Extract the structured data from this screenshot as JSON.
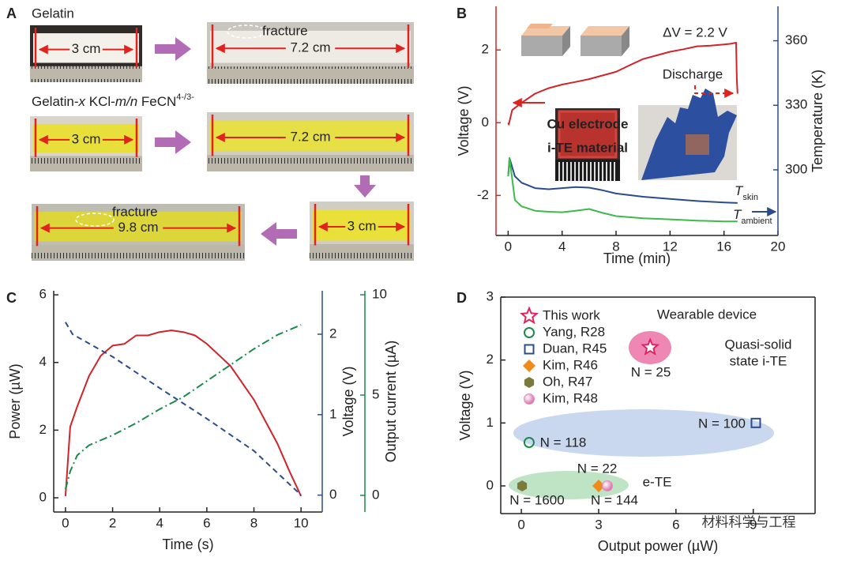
{
  "panel_labels": [
    "A",
    "B",
    "C",
    "D"
  ],
  "panel_a": {
    "title_1": "Gelatin",
    "title_2": {
      "parts": [
        "Gelatin-",
        "x",
        " KCl-",
        "m/n",
        " FeCN",
        "4-/3-"
      ]
    },
    "photos": [
      {
        "length": "3 cm"
      },
      {
        "length": "7.2 cm",
        "note": "fracture"
      },
      {
        "length": "3 cm"
      },
      {
        "length": "7.2 cm"
      },
      {
        "length": "3 cm"
      },
      {
        "length": "9.8 cm",
        "note": "fracture"
      }
    ]
  },
  "chart_data": [
    {
      "type": "line",
      "x_label": "Time (min)",
      "y_label": "Voltage (V)",
      "y2_label": "Temperature (K)",
      "xlim": [
        -0.9,
        20
      ],
      "xticks": [
        0,
        4,
        8,
        12,
        16,
        20
      ],
      "ylim": [
        -3.1,
        3.2
      ],
      "yticks": [
        -2,
        0,
        2
      ],
      "y2lim": [
        269.5,
        376
      ],
      "y2ticks": [
        300,
        330,
        360
      ],
      "annotations": [
        "ΔV = 2.2 V",
        "Discharge",
        "Cu electrode",
        "i-TE material"
      ],
      "series_labels": [
        {
          "text": "T",
          "sub": "skin"
        },
        {
          "text": "T",
          "sub": "ambient"
        }
      ],
      "series": [
        {
          "color": "#d2232a",
          "axis": "y",
          "dash": "solid",
          "x": [
            0,
            0.05,
            0.3,
            1,
            2,
            3,
            4,
            5,
            6,
            7,
            8,
            9,
            10,
            11,
            12,
            13,
            14,
            15,
            16,
            16.5,
            16.9,
            16.95,
            17
          ],
          "values": [
            0.0,
            -0.05,
            0.35,
            0.55,
            0.8,
            0.95,
            1.05,
            1.12,
            1.2,
            1.3,
            1.4,
            1.58,
            1.75,
            1.85,
            1.95,
            2.02,
            2.1,
            2.12,
            2.15,
            2.17,
            2.2,
            1.2,
            0.8
          ]
        },
        {
          "color": "#2b4c8c",
          "axis": "y2",
          "dash": "solid",
          "x": [
            0,
            0.1,
            0.5,
            1,
            2,
            3,
            4,
            5,
            6,
            7,
            8,
            10,
            12,
            14,
            16,
            17
          ],
          "values": [
            297,
            305.5,
            297,
            294,
            291.5,
            291,
            291.5,
            292,
            291.7,
            290.5,
            289,
            287.5,
            286.5,
            285.5,
            284.8,
            284.6
          ]
        },
        {
          "color": "#3dba4a",
          "axis": "y2",
          "dash": "solid",
          "x": [
            0,
            0.1,
            0.5,
            1,
            2,
            3,
            4,
            5,
            6,
            7,
            8,
            10,
            12,
            14,
            16,
            17
          ],
          "values": [
            297,
            305.5,
            286,
            283,
            281,
            280.5,
            280.3,
            281,
            281.8,
            280,
            278.5,
            277.5,
            277,
            276.4,
            276,
            276
          ]
        }
      ]
    },
    {
      "type": "line",
      "x_label": "Time (s)",
      "y_label": "Power (µW)",
      "y2_label": "Voltage (V)",
      "y3_label": "Output current (µA)",
      "xlim": [
        -0.5,
        10.9
      ],
      "xticks": [
        0,
        2,
        4,
        6,
        8,
        10
      ],
      "ylim": [
        -0.42,
        6.12
      ],
      "yticks": [
        0,
        2,
        4,
        6
      ],
      "y2lim": [
        -0.21,
        2.54
      ],
      "y2ticks": [
        0,
        1,
        2
      ],
      "y3lim": [
        -0.83,
        10.2
      ],
      "y3ticks": [
        0,
        5,
        10
      ],
      "series": [
        {
          "color": "#d2232a",
          "axis": "y",
          "dash": "solid",
          "x": [
            0,
            0.2,
            0.5,
            1,
            1.5,
            2,
            2.5,
            3,
            3.5,
            4,
            4.5,
            5,
            5.5,
            6,
            7,
            8,
            9,
            9.5,
            10
          ],
          "values": [
            0.05,
            2.1,
            2.7,
            3.6,
            4.2,
            4.5,
            4.55,
            4.8,
            4.8,
            4.9,
            4.95,
            4.9,
            4.8,
            4.55,
            3.9,
            2.9,
            1.6,
            0.8,
            0.05
          ]
        },
        {
          "color": "#2b4c8c",
          "axis": "y2",
          "dash": "dashed",
          "x": [
            0,
            0.3,
            2,
            4,
            6,
            8,
            10
          ],
          "values": [
            2.15,
            2.0,
            1.72,
            1.33,
            0.95,
            0.55,
            0.0
          ]
        },
        {
          "color": "#1a8a4a",
          "axis": "y3",
          "dash": "dashdot",
          "x": [
            0,
            0.2,
            0.5,
            1,
            2,
            3,
            4,
            5,
            6,
            7,
            8,
            9,
            10
          ],
          "values": [
            0.3,
            1.2,
            2.0,
            2.5,
            3.0,
            3.6,
            4.3,
            4.9,
            5.7,
            6.5,
            7.3,
            8.0,
            8.5
          ]
        }
      ]
    },
    {
      "type": "scatter",
      "x_label": "Output power (µW)",
      "y_label": "Voltage (V)",
      "xlim": [
        -0.8,
        11.4
      ],
      "xticks": [
        0,
        3,
        6,
        9
      ],
      "ylim": [
        -0.44,
        3
      ],
      "yticks": [
        0,
        1,
        2,
        3
      ],
      "legend": "upper left",
      "series": [
        {
          "name": "This work",
          "color": "#e0245e",
          "marker": "star",
          "x": [
            5.0
          ],
          "values": [
            2.2
          ]
        },
        {
          "name": "Yang, R28",
          "color": "#1e8a4a",
          "marker": "open-circle",
          "x": [
            0.3
          ],
          "values": [
            0.69
          ]
        },
        {
          "name": "Duan, R45",
          "color": "#2b4c8c",
          "marker": "open-square",
          "x": [
            9.1
          ],
          "values": [
            1.0
          ]
        },
        {
          "name": "Kim, R46",
          "color": "#f08a1c",
          "marker": "diamond",
          "x": [
            3.0
          ],
          "values": [
            0.0
          ]
        },
        {
          "name": "Oh, R47",
          "color": "#7a7a3a",
          "marker": "hexagon",
          "x": [
            0.03
          ],
          "values": [
            0.0
          ]
        },
        {
          "name": "Kim, R48",
          "color": "#e78ac3",
          "marker": "ball",
          "x": [
            3.34
          ],
          "values": [
            0.0
          ]
        }
      ],
      "annotations": [
        "Wearable device",
        "Quasi-solid",
        "state i-TE",
        "N = 25",
        "N = 118",
        "N = 100",
        "N = 22",
        "N = 1600",
        "N = 144",
        "e-TE"
      ],
      "watermark": "材料科学与工程"
    }
  ]
}
